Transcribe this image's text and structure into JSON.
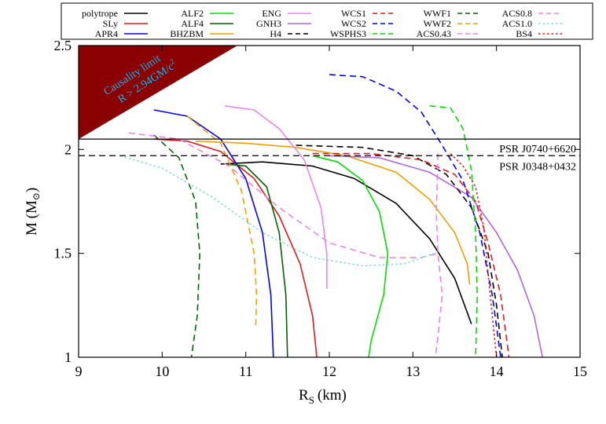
{
  "chart_data": {
    "type": "line",
    "xlabel": "R",
    "xlabel_sub": "S",
    "xlabel_unit": "(km)",
    "ylabel": "M (M",
    "ylabel_sub": "⊙",
    "ylabel_close": ")",
    "xlim": [
      9,
      15
    ],
    "ylim": [
      1,
      2.5
    ],
    "xticks": [
      9,
      10,
      11,
      12,
      13,
      14,
      15
    ],
    "xtick_labels": [
      "9",
      "10",
      "11",
      "12",
      "13",
      "14",
      "15"
    ],
    "yticks": [
      1,
      1.5,
      2,
      2.5
    ],
    "ytick_labels": [
      "1",
      "1.5",
      "2",
      "2.5"
    ],
    "legend_position": "top, outside plot area, 6 columns",
    "causality": {
      "label_line1": "Causality limit",
      "label_line2": "R > 2.94GM/c",
      "label_sup": "2",
      "fill_color": "#8b0000",
      "text_color": "#00bfff",
      "vertices": [
        [
          9,
          2.05
        ],
        [
          9,
          2.5
        ],
        [
          10.9,
          2.5
        ]
      ]
    },
    "hlines": [
      {
        "label": "PSR J0740+6620",
        "y": 2.05,
        "dash": "solid"
      },
      {
        "label": "PSR J0348+0432",
        "y": 1.97,
        "dash": "dashed"
      }
    ],
    "series": [
      {
        "name": "polytrope",
        "color": "#000000",
        "dash": "solid",
        "points": [
          [
            10.7,
            1.93
          ],
          [
            11.2,
            1.94
          ],
          [
            11.8,
            1.92
          ],
          [
            12.3,
            1.86
          ],
          [
            12.8,
            1.74
          ],
          [
            13.2,
            1.57
          ],
          [
            13.5,
            1.38
          ],
          [
            13.7,
            1.16
          ]
        ]
      },
      {
        "name": "SLy",
        "color": "#e31a1c",
        "dash": "solid",
        "points": [
          [
            9.9,
            2.05
          ],
          [
            10.3,
            2.04
          ],
          [
            10.7,
            1.99
          ],
          [
            11.1,
            1.86
          ],
          [
            11.4,
            1.68
          ],
          [
            11.65,
            1.45
          ],
          [
            11.8,
            1.2
          ],
          [
            11.85,
            1.0
          ]
        ]
      },
      {
        "name": "APR4",
        "color": "#0000ff",
        "dash": "solid",
        "points": [
          [
            9.9,
            2.19
          ],
          [
            10.3,
            2.16
          ],
          [
            10.7,
            2.05
          ],
          [
            11.0,
            1.86
          ],
          [
            11.2,
            1.6
          ],
          [
            11.3,
            1.3
          ],
          [
            11.33,
            1.0
          ]
        ]
      },
      {
        "name": "ALF2",
        "color": "#00e000",
        "dash": "solid",
        "points": [
          [
            11.8,
            1.97
          ],
          [
            12.1,
            1.94
          ],
          [
            12.4,
            1.85
          ],
          [
            12.6,
            1.7
          ],
          [
            12.7,
            1.5
          ],
          [
            12.65,
            1.3
          ],
          [
            12.5,
            1.08
          ],
          [
            12.47,
            1.0
          ]
        ]
      },
      {
        "name": "ALF4",
        "color": "#006400",
        "dash": "solid",
        "points": [
          [
            10.75,
            1.93
          ],
          [
            11.0,
            1.92
          ],
          [
            11.25,
            1.82
          ],
          [
            11.4,
            1.6
          ],
          [
            11.48,
            1.3
          ],
          [
            11.5,
            1.0
          ]
        ]
      },
      {
        "name": "BHZBM",
        "color": "#f0a000",
        "dash": "solid",
        "points": [
          [
            10.4,
            2.04
          ],
          [
            11.0,
            2.03
          ],
          [
            11.6,
            2.01
          ],
          [
            12.2,
            1.97
          ],
          [
            12.8,
            1.89
          ],
          [
            13.2,
            1.76
          ],
          [
            13.5,
            1.6
          ],
          [
            13.65,
            1.45
          ],
          [
            13.68,
            1.35
          ]
        ]
      },
      {
        "name": "ENG",
        "color": "#ee82ee",
        "dash": "solid",
        "points": [
          [
            10.75,
            2.21
          ],
          [
            11.1,
            2.19
          ],
          [
            11.4,
            2.1
          ],
          [
            11.7,
            1.95
          ],
          [
            11.9,
            1.72
          ],
          [
            11.97,
            1.5
          ],
          [
            11.97,
            1.33
          ]
        ]
      },
      {
        "name": "GNH3",
        "color": "#b266e0",
        "dash": "solid",
        "points": [
          [
            12.0,
            1.97
          ],
          [
            12.6,
            1.96
          ],
          [
            13.2,
            1.89
          ],
          [
            13.7,
            1.77
          ],
          [
            14.0,
            1.6
          ],
          [
            14.25,
            1.42
          ],
          [
            14.45,
            1.2
          ],
          [
            14.55,
            1.0
          ]
        ]
      },
      {
        "name": "H4",
        "color": "#000000",
        "dash": "dashed",
        "points": [
          [
            11.6,
            2.02
          ],
          [
            12.4,
            2.01
          ],
          [
            13.0,
            1.97
          ],
          [
            13.4,
            1.88
          ],
          [
            13.7,
            1.72
          ],
          [
            13.9,
            1.5
          ],
          [
            14.0,
            1.25
          ],
          [
            14.07,
            1.0
          ]
        ]
      },
      {
        "name": "WCS1",
        "color": "#e31a1c",
        "dash": "dashed",
        "points": [
          [
            11.8,
            1.98
          ],
          [
            12.5,
            1.98
          ],
          [
            13.1,
            1.95
          ],
          [
            13.5,
            1.88
          ],
          [
            13.75,
            1.75
          ],
          [
            13.9,
            1.55
          ],
          [
            14.05,
            1.3
          ],
          [
            14.15,
            1.0
          ]
        ]
      },
      {
        "name": "WCS2",
        "color": "#0000ff",
        "dash": "dashed",
        "points": [
          [
            12.0,
            2.36
          ],
          [
            12.4,
            2.35
          ],
          [
            12.8,
            2.28
          ],
          [
            13.1,
            2.18
          ],
          [
            13.35,
            2.02
          ],
          [
            13.6,
            1.85
          ],
          [
            13.8,
            1.6
          ],
          [
            13.95,
            1.3
          ],
          [
            14.05,
            1.0
          ]
        ]
      },
      {
        "name": "WSPHS3",
        "color": "#00e000",
        "dash": "dashed",
        "points": [
          [
            13.2,
            2.21
          ],
          [
            13.45,
            2.2
          ],
          [
            13.6,
            2.1
          ],
          [
            13.7,
            1.9
          ],
          [
            13.75,
            1.6
          ],
          [
            13.77,
            1.3
          ],
          [
            13.75,
            1.0
          ]
        ]
      },
      {
        "name": "WWF1",
        "color": "#006400",
        "dash": "dashed",
        "points": [
          [
            9.9,
            2.07
          ],
          [
            10.2,
            1.96
          ],
          [
            10.4,
            1.75
          ],
          [
            10.45,
            1.5
          ],
          [
            10.42,
            1.2
          ],
          [
            10.35,
            1.0
          ]
        ]
      },
      {
        "name": "WWF2",
        "color": "#f0a000",
        "dash": "dashed",
        "points": [
          [
            10.3,
            2.16
          ],
          [
            10.7,
            2.03
          ],
          [
            10.95,
            1.8
          ],
          [
            11.1,
            1.5
          ],
          [
            11.13,
            1.3
          ],
          [
            11.12,
            1.15
          ]
        ]
      },
      {
        "name": "ACS0.43",
        "color": "#ee82ee",
        "dash": "dashed",
        "points": [
          [
            13.3,
            1.98
          ],
          [
            13.28,
            1.7
          ],
          [
            13.3,
            1.5
          ],
          [
            13.35,
            1.3
          ],
          [
            13.3,
            1.1
          ],
          [
            13.27,
            1.0
          ]
        ]
      },
      {
        "name": "ACS0.8",
        "color": "#ee82ee",
        "dash": "dashed",
        "points": [
          [
            9.6,
            2.08
          ],
          [
            10.2,
            2.05
          ],
          [
            10.8,
            1.92
          ],
          [
            11.4,
            1.72
          ],
          [
            12.0,
            1.55
          ],
          [
            12.6,
            1.48
          ],
          [
            13.1,
            1.48
          ],
          [
            13.3,
            1.5
          ]
        ]
      },
      {
        "name": "ACS1.0",
        "color": "#7fe0d0",
        "dash": "dotted",
        "points": [
          [
            9.5,
            1.97
          ],
          [
            10.0,
            1.91
          ],
          [
            10.6,
            1.77
          ],
          [
            11.2,
            1.6
          ],
          [
            11.8,
            1.48
          ],
          [
            12.4,
            1.44
          ],
          [
            12.9,
            1.45
          ],
          [
            13.25,
            1.5
          ]
        ]
      },
      {
        "name": "BS4",
        "color": "#e31a1c",
        "dash": "dotted",
        "points": [
          [
            13.45,
            1.98
          ],
          [
            13.6,
            1.92
          ],
          [
            13.75,
            1.82
          ],
          [
            13.85,
            1.62
          ],
          [
            13.9,
            1.4
          ],
          [
            13.95,
            1.2
          ],
          [
            14.0,
            1.0
          ]
        ]
      }
    ]
  }
}
